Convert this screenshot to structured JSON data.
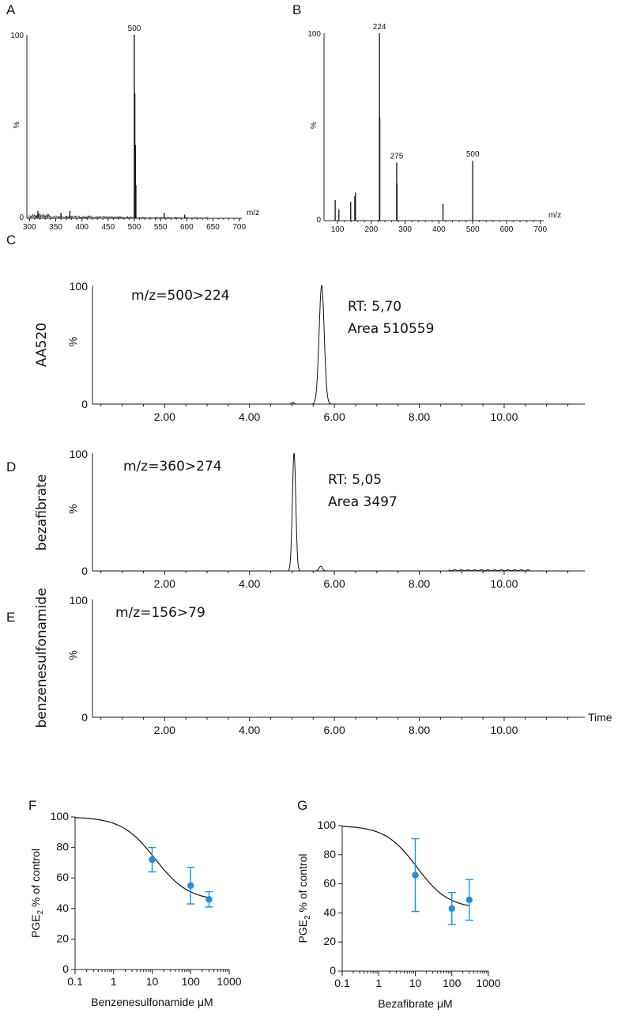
{
  "chart_data": [
    {
      "panel": "A",
      "type": "bar",
      "xlim": [
        295,
        705
      ],
      "ylim": [
        0,
        100
      ],
      "x_ticks": [
        300,
        350,
        400,
        450,
        500,
        550,
        600,
        650,
        700
      ],
      "y_tick_labels": [
        "0",
        "100"
      ],
      "ylabel": "%",
      "xunit": "m/z",
      "peak_labels": [
        "500"
      ],
      "peaks": [
        {
          "x": 500,
          "y": 100
        },
        {
          "x": 501,
          "y": 68
        },
        {
          "x": 502,
          "y": 40
        },
        {
          "x": 503,
          "y": 18
        },
        {
          "x": 316,
          "y": 4
        },
        {
          "x": 360,
          "y": 3
        },
        {
          "x": 377,
          "y": 4
        },
        {
          "x": 557,
          "y": 3
        },
        {
          "x": 596,
          "y": 2
        }
      ]
    },
    {
      "panel": "B",
      "type": "bar",
      "xlim": [
        60,
        710
      ],
      "ylim": [
        0,
        100
      ],
      "x_ticks": [
        100,
        200,
        300,
        400,
        500,
        600,
        700
      ],
      "y_tick_labels": [
        "0",
        "100"
      ],
      "ylabel": "%",
      "xunit": "m/z",
      "peak_labels": [
        "224",
        "275",
        "500"
      ],
      "peaks": [
        {
          "x": 93,
          "y": 11
        },
        {
          "x": 104,
          "y": 6
        },
        {
          "x": 139,
          "y": 10
        },
        {
          "x": 151,
          "y": 13
        },
        {
          "x": 153,
          "y": 15
        },
        {
          "x": 224,
          "y": 100
        },
        {
          "x": 225,
          "y": 55
        },
        {
          "x": 275,
          "y": 31
        },
        {
          "x": 276,
          "y": 20
        },
        {
          "x": 412,
          "y": 9
        },
        {
          "x": 500,
          "y": 32
        }
      ]
    },
    {
      "panel": "C",
      "type": "line",
      "compound": "AA520",
      "transition": "m/z=500>224",
      "rt_text": "RT: 5,70",
      "area_text": "Area 510559",
      "xlim": [
        0.3,
        11.9
      ],
      "ylim": [
        0,
        100
      ],
      "x_tick_labels": [
        "2.00",
        "4.00",
        "6.00",
        "8.00",
        "10.00"
      ],
      "y_tick_labels": [
        "0",
        "100"
      ],
      "ylabel": "%",
      "peak": {
        "rt": 5.7,
        "height": 100,
        "width": 0.06
      },
      "minor": [
        {
          "rt": 5.02,
          "height": 1.5,
          "width": 0.03
        }
      ]
    },
    {
      "panel": "D",
      "type": "line",
      "compound": "bezafibrate",
      "transition": "m/z=360>274",
      "rt_text": "RT: 5,05",
      "area_text": "Area 3497",
      "xlim": [
        0.3,
        11.9
      ],
      "ylim": [
        0,
        100
      ],
      "x_tick_labels": [
        "2.00",
        "4.00",
        "6.00",
        "8.00",
        "10.00"
      ],
      "y_tick_labels": [
        "0",
        "100"
      ],
      "ylabel": "%",
      "peak": {
        "rt": 5.05,
        "height": 100,
        "width": 0.04
      },
      "minor": [
        {
          "rt": 5.68,
          "height": 4,
          "width": 0.04
        }
      ]
    },
    {
      "panel": "E",
      "type": "line",
      "compound": "benzenesulfonamide",
      "transition": "m/z=156>79",
      "xlim": [
        0.3,
        11.9
      ],
      "ylim": [
        0,
        100
      ],
      "x_tick_labels": [
        "2.00",
        "4.00",
        "6.00",
        "8.00",
        "10.00"
      ],
      "y_tick_labels": [
        "0",
        "100"
      ],
      "ylabel": "%",
      "xlabel": "Time",
      "peak": null,
      "minor": []
    },
    {
      "panel": "F",
      "type": "scatter",
      "xlabel": "Benzenesulfonamide μM",
      "ylabel_main": "PGE",
      "ylabel_sub": "2",
      "ylabel_rest": " % of control",
      "xscale": "log",
      "xlim": [
        0.1,
        1000
      ],
      "ylim": [
        0,
        100
      ],
      "x_tick_labels": [
        "0.1",
        "1",
        "10",
        "100",
        "1000"
      ],
      "y_tick_labels": [
        "0",
        "20",
        "40",
        "60",
        "80",
        "100"
      ],
      "points": [
        {
          "x": 10,
          "y": 72,
          "err": 8
        },
        {
          "x": 100,
          "y": 55,
          "err": 12
        },
        {
          "x": 300,
          "y": 46,
          "err": 5
        }
      ],
      "fit": {
        "top": 100,
        "bottom": 45,
        "ic50": 12
      },
      "point_color": "#1f8fe0"
    },
    {
      "panel": "G",
      "type": "scatter",
      "xlabel": "Bezafibrate μM",
      "ylabel_main": "PGE",
      "ylabel_sub": "2",
      "ylabel_rest": " % of control",
      "xscale": "log",
      "xlim": [
        0.1,
        1000
      ],
      "ylim": [
        0,
        100
      ],
      "x_tick_labels": [
        "0.1",
        "1",
        "10",
        "100",
        "1000"
      ],
      "y_tick_labels": [
        "0",
        "20",
        "40",
        "60",
        "80",
        "100"
      ],
      "points": [
        {
          "x": 10,
          "y": 66,
          "err": 25
        },
        {
          "x": 100,
          "y": 43,
          "err": 11
        },
        {
          "x": 300,
          "y": 49,
          "err": 14
        }
      ],
      "fit": {
        "top": 100,
        "bottom": 43,
        "ic50": 11
      },
      "point_color": "#1f8fe0"
    }
  ]
}
